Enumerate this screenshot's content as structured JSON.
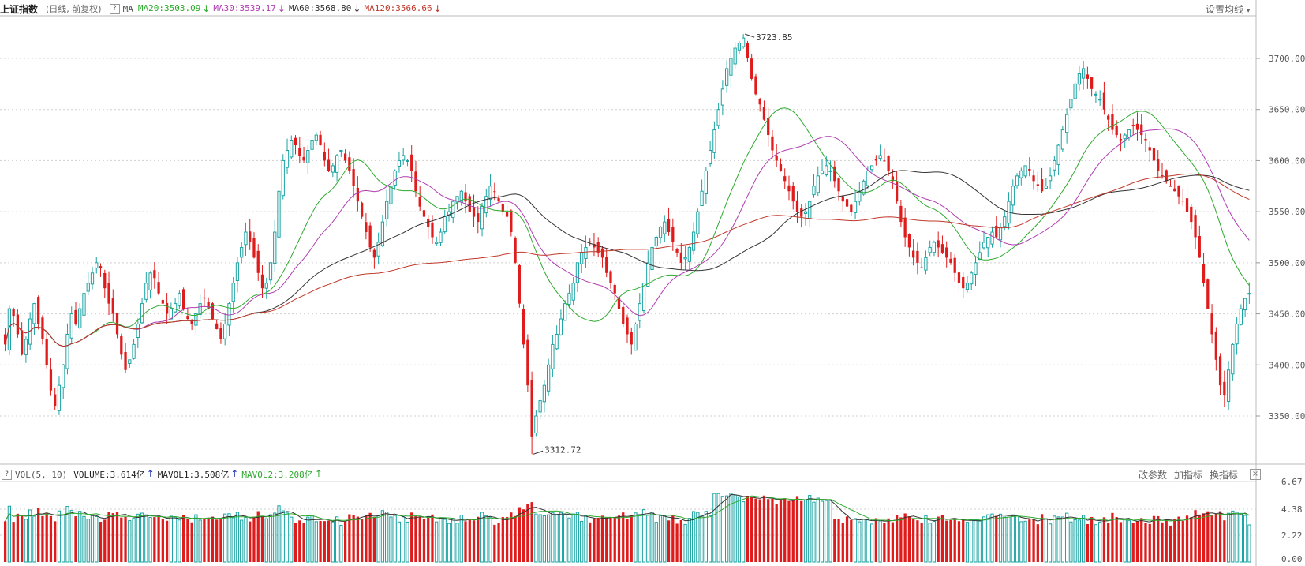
{
  "header": {
    "title": "上证指数",
    "subtitle": "(日线, 前复权)",
    "help": "?",
    "ma_label": "MA",
    "ma": [
      {
        "label": "MA20:3503.09",
        "arrow": "↓",
        "color": "#2eaa2e"
      },
      {
        "label": "MA30:3539.17",
        "arrow": "↓",
        "color": "#b03cb0"
      },
      {
        "label": "MA60:3568.80",
        "arrow": "↓",
        "color": "#333333"
      },
      {
        "label": "MA120:3566.66",
        "arrow": "↓",
        "color": "#c0392b"
      }
    ],
    "settings": "设置均线",
    "settings_caret": "▾"
  },
  "volume_header": {
    "help": "?",
    "label": "VOL(5, 10)",
    "items": [
      {
        "label": "VOLUME:3.614亿",
        "arrow": "↑",
        "color": "#222222"
      },
      {
        "label": "MAVOL1:3.508亿",
        "arrow": "↑",
        "color": "#222222"
      },
      {
        "label": "MAVOL2:3.208亿",
        "arrow": "↑",
        "color": "#2eaa2e"
      }
    ],
    "buttons": [
      "改参数",
      "加指标",
      "换指标"
    ],
    "close": "×"
  },
  "colors": {
    "up": "#1aa3a3",
    "down": "#e01b1b",
    "ma20": "#2eaa2e",
    "ma30": "#b03cb0",
    "ma60": "#333333",
    "ma120": "#c0392b",
    "grid": "#d0d0d0"
  },
  "chart_data": {
    "type": "candlestick",
    "price_axis": {
      "ticks": [
        "3700.00",
        "3650.00",
        "3600.00",
        "3550.00",
        "3500.00",
        "3450.00",
        "3400.00",
        "3350.00"
      ],
      "range": [
        3312,
        3730
      ]
    },
    "annotations": [
      {
        "label": "3723.85",
        "value": 3723.85,
        "kind": "high"
      },
      {
        "label": "3312.72",
        "value": 3312.72,
        "kind": "low"
      }
    ],
    "close": [
      3420,
      3455,
      3448,
      3430,
      3410,
      3425,
      3445,
      3460,
      3440,
      3425,
      3400,
      3375,
      3360,
      3380,
      3400,
      3430,
      3450,
      3440,
      3455,
      3470,
      3480,
      3490,
      3500,
      3495,
      3475,
      3460,
      3450,
      3430,
      3410,
      3395,
      3405,
      3420,
      3440,
      3460,
      3480,
      3490,
      3485,
      3470,
      3460,
      3450,
      3455,
      3460,
      3470,
      3455,
      3445,
      3440,
      3450,
      3460,
      3465,
      3455,
      3445,
      3435,
      3425,
      3440,
      3460,
      3480,
      3500,
      3515,
      3530,
      3520,
      3505,
      3490,
      3475,
      3480,
      3500,
      3530,
      3570,
      3600,
      3610,
      3620,
      3615,
      3605,
      3600,
      3610,
      3620,
      3625,
      3615,
      3600,
      3590,
      3595,
      3605,
      3610,
      3600,
      3590,
      3575,
      3560,
      3545,
      3530,
      3515,
      3505,
      3520,
      3540,
      3560,
      3575,
      3590,
      3600,
      3605,
      3600,
      3590,
      3570,
      3555,
      3545,
      3535,
      3525,
      3520,
      3530,
      3545,
      3550,
      3560,
      3565,
      3570,
      3560,
      3550,
      3545,
      3540,
      3555,
      3565,
      3575,
      3570,
      3560,
      3550,
      3545,
      3530,
      3500,
      3460,
      3420,
      3380,
      3330,
      3350,
      3365,
      3380,
      3400,
      3420,
      3430,
      3445,
      3460,
      3470,
      3480,
      3500,
      3510,
      3515,
      3520,
      3515,
      3510,
      3505,
      3490,
      3480,
      3470,
      3455,
      3440,
      3430,
      3420,
      3440,
      3460,
      3480,
      3500,
      3515,
      3525,
      3535,
      3540,
      3530,
      3520,
      3510,
      3500,
      3505,
      3515,
      3530,
      3550,
      3570,
      3590,
      3610,
      3630,
      3650,
      3670,
      3690,
      3700,
      3710,
      3715,
      3720,
      3700,
      3680,
      3665,
      3655,
      3640,
      3625,
      3610,
      3600,
      3590,
      3580,
      3570,
      3560,
      3550,
      3545,
      3550,
      3560,
      3575,
      3585,
      3590,
      3595,
      3590,
      3580,
      3570,
      3560,
      3555,
      3550,
      3560,
      3570,
      3580,
      3590,
      3595,
      3600,
      3605,
      3600,
      3590,
      3580,
      3560,
      3540,
      3525,
      3515,
      3505,
      3500,
      3495,
      3505,
      3515,
      3520,
      3515,
      3510,
      3505,
      3500,
      3490,
      3480,
      3475,
      3480,
      3490,
      3500,
      3510,
      3520,
      3525,
      3530,
      3525,
      3535,
      3545,
      3560,
      3575,
      3585,
      3590,
      3595,
      3590,
      3580,
      3575,
      3570,
      3575,
      3585,
      3600,
      3615,
      3630,
      3645,
      3660,
      3675,
      3685,
      3690,
      3680,
      3670,
      3665,
      3660,
      3650,
      3640,
      3630,
      3625,
      3620,
      3625,
      3630,
      3635,
      3630,
      3625,
      3620,
      3610,
      3600,
      3590,
      3585,
      3580,
      3575,
      3570,
      3565,
      3560,
      3550,
      3540,
      3525,
      3505,
      3480,
      3455,
      3430,
      3405,
      3380,
      3370,
      3395,
      3420,
      3440,
      3455,
      3465,
      3470
    ],
    "volume_axis": {
      "ticks": [
        "6.67",
        "4.38",
        "2.22",
        "0.00"
      ],
      "range": [
        0,
        6.67
      ]
    }
  }
}
